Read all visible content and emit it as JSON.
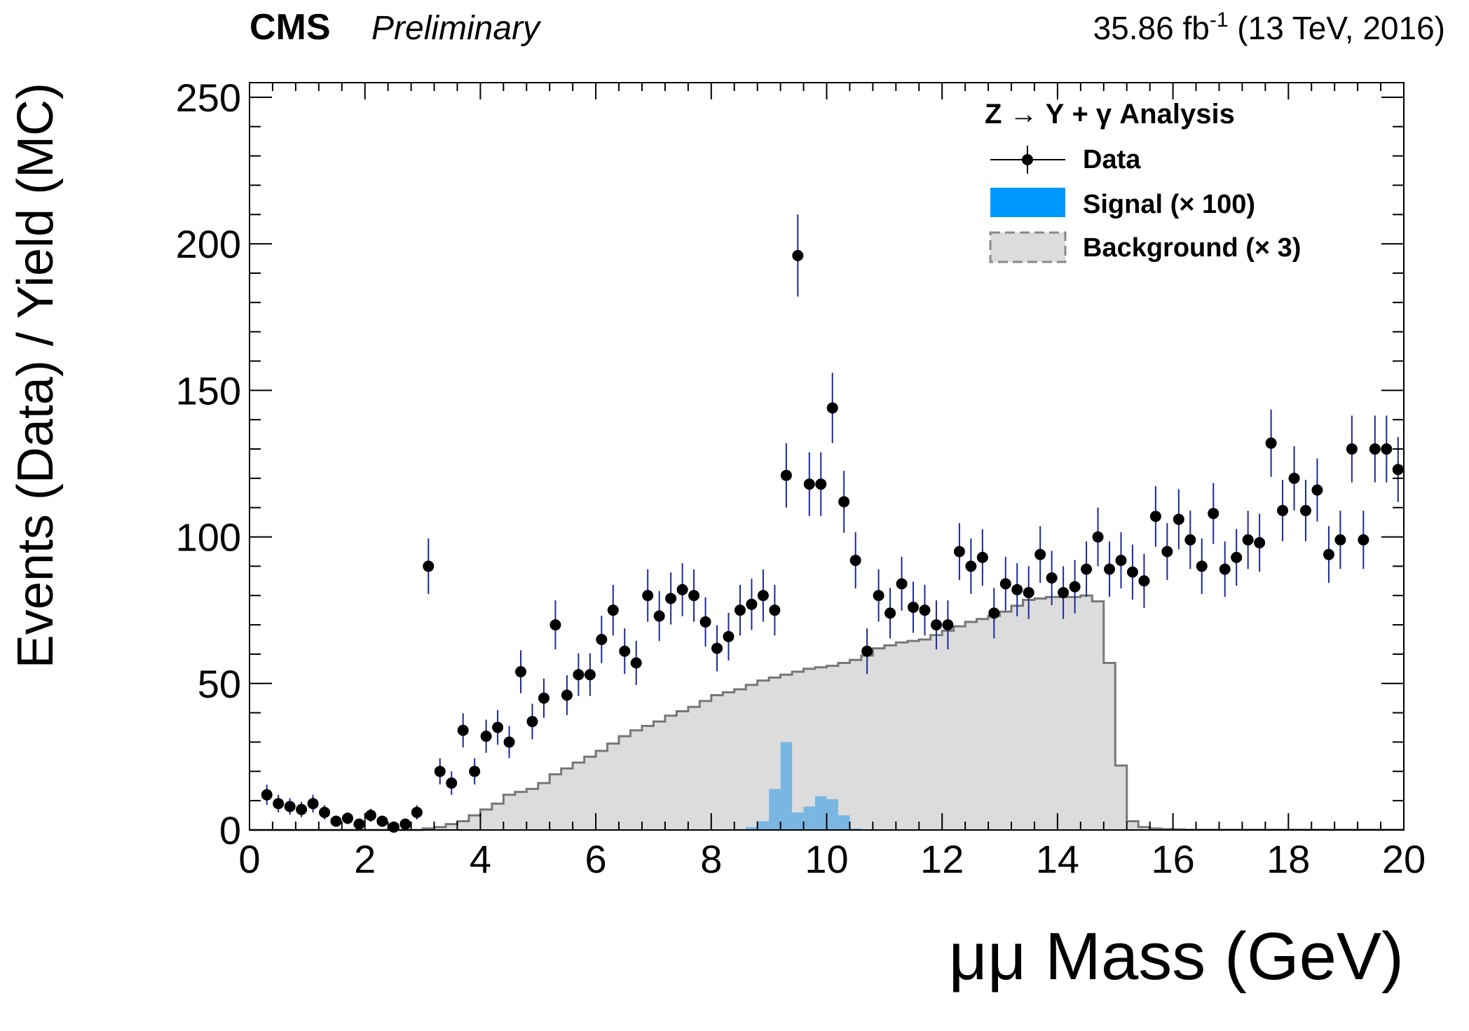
{
  "header": {
    "experiment": "CMS",
    "status": "Preliminary",
    "lumi_value": "35.86 fb",
    "lumi_exp": "-1",
    "lumi_rest": " (13 TeV, 2016)"
  },
  "colors": {
    "data": "#000000",
    "error_bar": "#1a2a9a",
    "signal_fill": "#7ab6e2",
    "legend_signal": "#0099ff",
    "background_fill": "#dcdcdc",
    "background_line": "#777777"
  },
  "chart_data": {
    "type": "histogram",
    "xlabel": "μμ Mass (GeV)",
    "ylabel": "Events (Data) / Yield (MC)",
    "xlim": [
      0,
      20
    ],
    "ylim": [
      0,
      255
    ],
    "xticks": [
      0,
      2,
      4,
      6,
      8,
      10,
      12,
      14,
      16,
      18,
      20
    ],
    "yticks": [
      0,
      50,
      100,
      150,
      200,
      250
    ],
    "legend": {
      "title": "Z → Υ + γ Analysis",
      "position": "top-right",
      "entries": [
        "Data",
        "Signal (× 100)",
        "Background (× 3)"
      ]
    },
    "series": [
      {
        "name": "Data",
        "kind": "points-with-errors",
        "x": [
          0.3,
          0.5,
          0.7,
          0.9,
          1.1,
          1.3,
          1.5,
          1.7,
          1.9,
          2.1,
          2.3,
          2.5,
          2.7,
          2.9,
          3.1,
          3.3,
          3.5,
          3.7,
          3.9,
          4.1,
          4.3,
          4.5,
          4.7,
          4.9,
          5.1,
          5.3,
          5.5,
          5.7,
          5.9,
          6.1,
          6.3,
          6.5,
          6.7,
          6.9,
          7.1,
          7.3,
          7.5,
          7.7,
          7.9,
          8.1,
          8.3,
          8.5,
          8.7,
          8.9,
          9.1,
          9.3,
          9.5,
          9.7,
          9.9,
          10.1,
          10.3,
          10.5,
          10.7,
          10.9,
          11.1,
          11.3,
          11.5,
          11.7,
          11.9,
          12.1,
          12.3,
          12.5,
          12.7,
          12.9,
          13.1,
          13.3,
          13.5,
          13.7,
          13.9,
          14.1,
          14.3,
          14.5,
          14.7,
          14.9,
          15.1,
          15.3,
          15.5,
          15.7,
          15.9,
          16.1,
          16.3,
          16.5,
          16.7,
          16.9,
          17.1,
          17.3,
          17.5,
          17.7,
          17.9,
          18.1,
          18.3,
          18.5,
          18.7,
          18.9,
          19.1,
          19.3,
          19.5,
          19.7,
          19.9
        ],
        "y": [
          12,
          9,
          8,
          7,
          9,
          6,
          3,
          4,
          2,
          5,
          3,
          1,
          2,
          6,
          90,
          20,
          16,
          34,
          20,
          32,
          35,
          30,
          54,
          37,
          45,
          70,
          46,
          53,
          53,
          65,
          75,
          61,
          57,
          80,
          73,
          79,
          82,
          80,
          71,
          62,
          66,
          75,
          77,
          80,
          75,
          121,
          196,
          118,
          118,
          144,
          112,
          92,
          61,
          80,
          74,
          84,
          76,
          75,
          70,
          70,
          95,
          90,
          93,
          74,
          84,
          82,
          81,
          94,
          86,
          81,
          83,
          89,
          100,
          89,
          92,
          88,
          85,
          107,
          95,
          106,
          99,
          90,
          108,
          89,
          93,
          99,
          98,
          132,
          109,
          120,
          109,
          116,
          94,
          99,
          130,
          99,
          130,
          130,
          123
        ]
      },
      {
        "name": "Background (× 3)",
        "kind": "step-fill",
        "bin_edges_start": 0,
        "bin_width": 0.2,
        "values": [
          0,
          0,
          0,
          0,
          0,
          0,
          0,
          0,
          0,
          0,
          0,
          0,
          0,
          0,
          0,
          0.5,
          1,
          2,
          3,
          5,
          7,
          9,
          12,
          13,
          14,
          16,
          19,
          21,
          23,
          25,
          27,
          29.5,
          32,
          34,
          35.5,
          37,
          39,
          40.5,
          42,
          44,
          46,
          47,
          48,
          49.5,
          51,
          52,
          53,
          54,
          55,
          55.5,
          56,
          57,
          58,
          59.5,
          62,
          63,
          64,
          64.5,
          65,
          66.5,
          68,
          69.5,
          71,
          72,
          73,
          74.5,
          76.5,
          78.5,
          79,
          79.5,
          79.5,
          79.5,
          80,
          78,
          57,
          22,
          3,
          1,
          0.5,
          0.3,
          0.2,
          0.1,
          0.1,
          0.1,
          0.1,
          0.1,
          0.1,
          0.1,
          0.1,
          0.1,
          0.1,
          0.1,
          0.1,
          0.1,
          0.1,
          0.1,
          0.1,
          0.1,
          0.1,
          0.1
        ]
      },
      {
        "name": "Signal (× 100)",
        "kind": "filled-histogram",
        "bin_edges_start": 0,
        "bin_width": 0.2,
        "values": [
          0,
          0,
          0,
          0,
          0,
          0,
          0,
          0,
          0,
          0,
          0,
          0,
          0,
          0,
          0,
          0,
          0,
          0,
          0,
          0,
          0,
          0,
          0,
          0,
          0,
          0,
          0,
          0,
          0,
          0,
          0,
          0,
          0,
          0,
          0,
          0,
          0,
          0,
          0,
          0,
          0,
          0,
          0.3,
          1,
          3,
          14,
          30,
          6,
          8,
          11.5,
          10.5,
          5,
          0.5,
          0,
          0,
          0,
          0,
          0,
          0,
          0,
          0,
          0,
          0,
          0,
          0,
          0,
          0,
          0,
          0,
          0,
          0,
          0,
          0,
          0,
          0,
          0,
          0,
          0,
          0,
          0,
          0,
          0,
          0,
          0,
          0,
          0,
          0,
          0,
          0,
          0,
          0,
          0,
          0,
          0,
          0,
          0,
          0,
          0,
          0,
          0
        ]
      }
    ]
  }
}
